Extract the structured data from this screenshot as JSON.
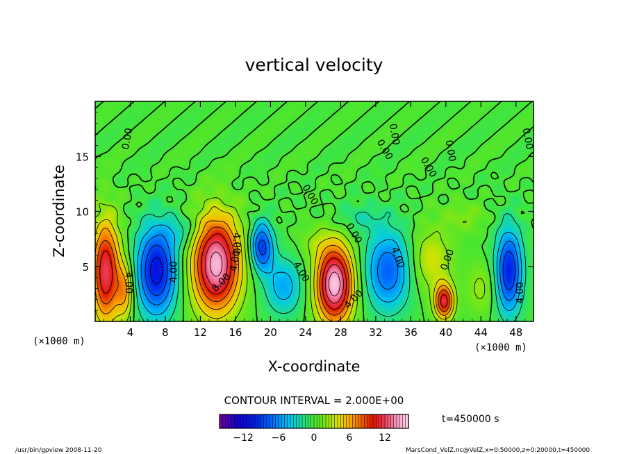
{
  "chart_data": {
    "type": "heatmap",
    "title": "vertical velocity",
    "xlabel": "X-coordinate",
    "ylabel": "Z-coordinate",
    "x_unit_left": "(×1000 m)",
    "x_unit_right": "(×1000 m)",
    "xlim": [
      0,
      50
    ],
    "ylim": [
      0,
      20
    ],
    "xticks": [
      4,
      8,
      12,
      16,
      20,
      24,
      28,
      32,
      36,
      40,
      44,
      48
    ],
    "yticks": [
      5,
      10,
      15
    ],
    "contour_interval_label": "CONTOUR INTERVAL = 2.000E+00",
    "time_label": "t=450000 s",
    "colorbar": {
      "min": -16,
      "max": 16,
      "ticks": [
        -12,
        -6,
        0,
        6,
        12
      ]
    },
    "contour_labels": [
      {
        "text": "0.00",
        "x": 3.7,
        "y": 16.6,
        "angle": -80
      },
      {
        "text": "0.00",
        "x": 34.1,
        "y": 17.0,
        "angle": 80
      },
      {
        "text": "0.00",
        "x": 40.5,
        "y": 15.5,
        "angle": 80
      },
      {
        "text": "0.00",
        "x": 49.3,
        "y": 16.6,
        "angle": 80
      },
      {
        "text": "0.00",
        "x": 33.0,
        "y": 15.6,
        "angle": 60
      },
      {
        "text": "0.00",
        "x": 38.0,
        "y": 14.0,
        "angle": 60
      },
      {
        "text": "0.00",
        "x": 24.5,
        "y": 11.5,
        "angle": 60
      },
      {
        "text": "0.00",
        "x": 29.5,
        "y": 8.0,
        "angle": 60
      },
      {
        "text": "0.00",
        "x": 40.2,
        "y": 5.6,
        "angle": -70
      },
      {
        "text": "4.00",
        "x": 3.8,
        "y": 3.5,
        "angle": 90
      },
      {
        "text": "4.00",
        "x": 9.0,
        "y": 4.5,
        "angle": -90
      },
      {
        "text": "4.00",
        "x": 16.1,
        "y": 7.1,
        "angle": 90
      },
      {
        "text": "4.00",
        "x": 16.0,
        "y": 5.5,
        "angle": -80
      },
      {
        "text": "8.00",
        "x": 14.4,
        "y": 3.5,
        "angle": -45
      },
      {
        "text": "4.00",
        "x": 23.5,
        "y": 4.5,
        "angle": 60
      },
      {
        "text": "4.00",
        "x": 29.5,
        "y": 2.0,
        "angle": -45
      },
      {
        "text": "4.00",
        "x": 34.5,
        "y": 5.8,
        "angle": 70
      },
      {
        "text": "4.00",
        "x": 48.5,
        "y": 2.6,
        "angle": -90
      }
    ],
    "field_features": [
      {
        "x": 1.2,
        "z": 4.5,
        "sx": 1.6,
        "sz": 4.6,
        "w": 12.0
      },
      {
        "x": 3.4,
        "z": 2.8,
        "sx": 1.0,
        "sz": 2.6,
        "w": 6.0
      },
      {
        "x": 7.0,
        "z": 4.6,
        "sx": 2.3,
        "sz": 4.0,
        "w": -11.0
      },
      {
        "x": 13.8,
        "z": 5.2,
        "sx": 2.7,
        "sz": 4.3,
        "w": 15.0
      },
      {
        "x": 19.0,
        "z": 6.8,
        "sx": 1.3,
        "sz": 2.2,
        "w": -9.0
      },
      {
        "x": 21.5,
        "z": 3.2,
        "sx": 2.2,
        "sz": 2.6,
        "w": -5.0
      },
      {
        "x": 27.3,
        "z": 3.4,
        "sx": 2.1,
        "sz": 3.5,
        "w": 15.5
      },
      {
        "x": 33.4,
        "z": 4.6,
        "sx": 2.6,
        "sz": 3.6,
        "w": -7.5
      },
      {
        "x": 39.8,
        "z": 1.8,
        "sx": 1.1,
        "sz": 1.6,
        "w": 11.0
      },
      {
        "x": 38.3,
        "z": 5.6,
        "sx": 2.3,
        "sz": 2.8,
        "w": 4.0
      },
      {
        "x": 47.2,
        "z": 4.6,
        "sx": 1.5,
        "sz": 3.8,
        "w": -10.0
      },
      {
        "x": 44.0,
        "z": 3.0,
        "sx": 1.6,
        "sz": 2.2,
        "w": 2.5
      },
      {
        "x": 25.0,
        "z": 7.2,
        "sx": 2.0,
        "sz": 1.5,
        "w": 1.5
      },
      {
        "x": 10.0,
        "z": 8.2,
        "sx": 2.0,
        "sz": 1.5,
        "w": -2.5
      },
      {
        "x": 30.0,
        "z": 9.4,
        "sx": 3.0,
        "sz": 1.4,
        "w": -2.0
      },
      {
        "x": 42.0,
        "z": 9.5,
        "sx": 2.5,
        "sz": 1.4,
        "w": 1.8
      }
    ]
  },
  "footer": {
    "left": "/usr/bin/gpview   2008-11-20",
    "right": "MarsCond_VelZ.nc@VelZ,x=0:50000,z=0:20000,t=450000"
  }
}
